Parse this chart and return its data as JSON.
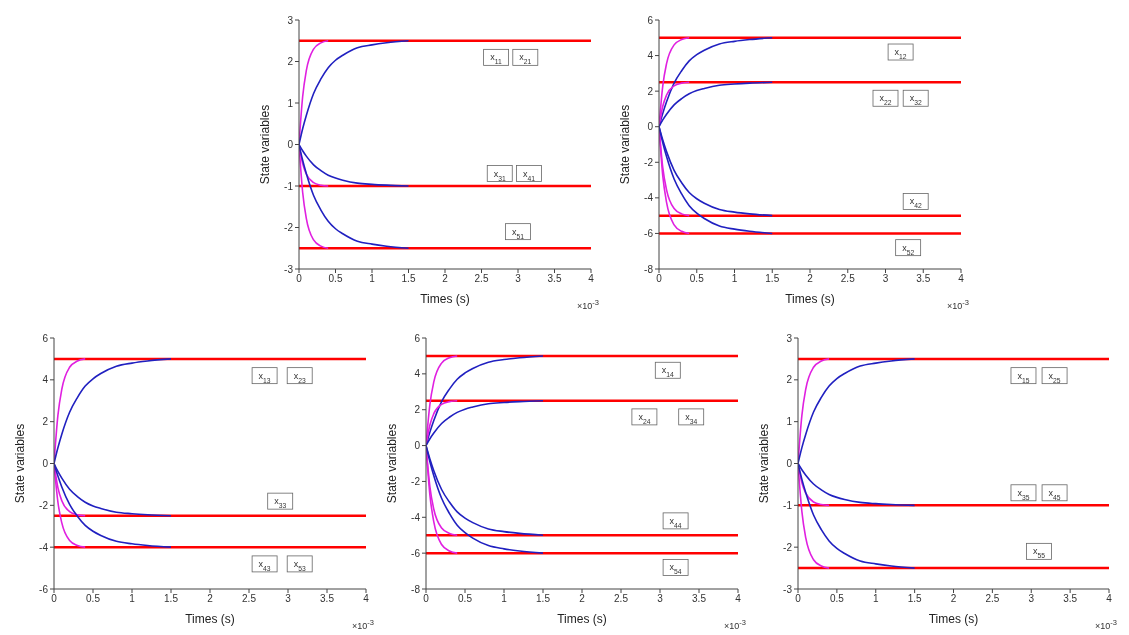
{
  "chart_data": [
    {
      "type": "line",
      "xlabel": "Times (s)",
      "ylabel": "State variables",
      "xlim": [
        0,
        4
      ],
      "xticks": [
        0,
        0.5,
        1,
        1.5,
        2,
        2.5,
        3,
        3.5,
        4
      ],
      "ylim": [
        -3,
        3
      ],
      "yticks": [
        -3,
        -2,
        -1,
        0,
        1,
        2,
        3
      ],
      "grid": false,
      "legend": false,
      "x": [
        0,
        0.05,
        0.1,
        0.2,
        0.3,
        0.4,
        0.5,
        0.6,
        0.8,
        1,
        1.2,
        1.5
      ],
      "series": [
        {
          "color": "#e020e0",
          "values": [
            0,
            1.15,
            1.78,
            2.3,
            2.45,
            2.5,
            null,
            null,
            null,
            null,
            null,
            null
          ]
        },
        {
          "color": "#2020c0",
          "values": [
            0,
            0.38,
            0.7,
            1.23,
            1.58,
            1.85,
            2.03,
            2.15,
            2.33,
            2.4,
            2.45,
            2.5
          ]
        },
        {
          "color": "#e020e0",
          "values": [
            0,
            -0.46,
            -0.71,
            -0.92,
            -0.98,
            -1,
            null,
            null,
            null,
            null,
            null,
            null
          ]
        },
        {
          "color": "#2020c0",
          "values": [
            0,
            -0.15,
            -0.28,
            -0.49,
            -0.63,
            -0.74,
            -0.81,
            -0.86,
            -0.93,
            -0.96,
            -0.98,
            -1
          ]
        },
        {
          "color": "#e020e0",
          "values": [
            0,
            -1.15,
            -1.78,
            -2.3,
            -2.45,
            -2.5,
            null,
            null,
            null,
            null,
            null,
            null
          ]
        },
        {
          "color": "#2020c0",
          "values": [
            0,
            -0.38,
            -0.7,
            -1.23,
            -1.58,
            -1.85,
            -2.03,
            -2.15,
            -2.33,
            -2.4,
            -2.45,
            -2.5
          ]
        }
      ],
      "ref_lines": [
        {
          "axis": "y",
          "value": 2.5,
          "color": "#ff0000"
        },
        {
          "axis": "y",
          "value": -1,
          "color": "#ff0000"
        },
        {
          "axis": "y",
          "value": -2.5,
          "color": "#ff0000"
        }
      ],
      "annotations": [
        "×10$^{-3}$",
        {
          "text": "x$_{11}$",
          "x": 2.7,
          "y": 2.1
        },
        {
          "text": "x$_{21}$",
          "x": 3.1,
          "y": 2.1
        },
        {
          "text": "x$_{31}$",
          "x": 2.75,
          "y": -0.7
        },
        {
          "text": "x$_{41}$",
          "x": 3.15,
          "y": -0.7
        },
        {
          "text": "x$_{51}$",
          "x": 3.0,
          "y": -2.1
        }
      ]
    },
    {
      "type": "line",
      "xlabel": "Times (s)",
      "ylabel": "State variables",
      "xlim": [
        0,
        4
      ],
      "xticks": [
        0,
        0.5,
        1,
        1.5,
        2,
        2.5,
        3,
        3.5,
        4
      ],
      "ylim": [
        -8,
        6
      ],
      "yticks": [
        -8,
        -6,
        -4,
        -2,
        0,
        2,
        4,
        6
      ],
      "grid": false,
      "legend": false,
      "x": [
        0,
        0.05,
        0.1,
        0.2,
        0.3,
        0.4,
        0.5,
        0.6,
        0.8,
        1,
        1.2,
        1.5
      ],
      "series": [
        {
          "color": "#e020e0",
          "values": [
            0,
            2.3,
            3.55,
            4.6,
            4.9,
            5,
            null,
            null,
            null,
            null,
            null,
            null
          ]
        },
        {
          "color": "#2020c0",
          "values": [
            0,
            0.75,
            1.4,
            2.45,
            3.15,
            3.7,
            4.05,
            4.3,
            4.65,
            4.8,
            4.9,
            5
          ]
        },
        {
          "color": "#e020e0",
          "values": [
            0,
            1.15,
            1.78,
            2.3,
            2.45,
            2.5,
            null,
            null,
            null,
            null,
            null,
            null
          ]
        },
        {
          "color": "#2020c0",
          "values": [
            0,
            0.38,
            0.7,
            1.23,
            1.58,
            1.85,
            2.03,
            2.15,
            2.33,
            2.4,
            2.45,
            2.5
          ]
        },
        {
          "color": "#e020e0",
          "values": [
            0,
            -2.3,
            -3.55,
            -4.6,
            -4.9,
            -5,
            null,
            null,
            null,
            null,
            null,
            null
          ]
        },
        {
          "color": "#2020c0",
          "values": [
            0,
            -0.75,
            -1.4,
            -2.45,
            -3.15,
            -3.7,
            -4.05,
            -4.3,
            -4.65,
            -4.8,
            -4.9,
            -5
          ]
        },
        {
          "color": "#e020e0",
          "values": [
            0,
            -2.76,
            -4.26,
            -5.52,
            -5.88,
            -6,
            null,
            null,
            null,
            null,
            null,
            null
          ]
        },
        {
          "color": "#2020c0",
          "values": [
            0,
            -0.9,
            -1.68,
            -2.94,
            -3.78,
            -4.44,
            -4.86,
            -5.16,
            -5.58,
            -5.76,
            -5.88,
            -6
          ]
        }
      ],
      "ref_lines": [
        {
          "axis": "y",
          "value": 5,
          "color": "#ff0000"
        },
        {
          "axis": "y",
          "value": 2.5,
          "color": "#ff0000"
        },
        {
          "axis": "y",
          "value": -5,
          "color": "#ff0000"
        },
        {
          "axis": "y",
          "value": -6,
          "color": "#ff0000"
        }
      ],
      "annotations": [
        "×10$^{-3}$",
        {
          "text": "x$_{12}$",
          "x": 3.2,
          "y": 4.2
        },
        {
          "text": "x$_{22}$",
          "x": 3.0,
          "y": 1.6
        },
        {
          "text": "x$_{32}$",
          "x": 3.4,
          "y": 1.6
        },
        {
          "text": "x$_{42}$",
          "x": 3.4,
          "y": -4.2
        },
        {
          "text": "x$_{52}$",
          "x": 3.3,
          "y": -6.8
        }
      ]
    },
    {
      "type": "line",
      "xlabel": "Times (s)",
      "ylabel": "State variables",
      "xlim": [
        0,
        4
      ],
      "xticks": [
        0,
        0.5,
        1,
        1.5,
        2,
        2.5,
        3,
        3.5,
        4
      ],
      "ylim": [
        -6,
        6
      ],
      "yticks": [
        -6,
        -4,
        -2,
        0,
        2,
        4,
        6
      ],
      "grid": false,
      "legend": false,
      "x": [
        0,
        0.05,
        0.1,
        0.2,
        0.3,
        0.4,
        0.5,
        0.6,
        0.8,
        1,
        1.2,
        1.5
      ],
      "series": [
        {
          "color": "#e020e0",
          "values": [
            0,
            2.3,
            3.55,
            4.6,
            4.9,
            5,
            null,
            null,
            null,
            null,
            null,
            null
          ]
        },
        {
          "color": "#2020c0",
          "values": [
            0,
            0.75,
            1.4,
            2.45,
            3.15,
            3.7,
            4.05,
            4.3,
            4.65,
            4.8,
            4.9,
            5
          ]
        },
        {
          "color": "#e020e0",
          "values": [
            0,
            -1.15,
            -1.78,
            -2.3,
            -2.45,
            -2.5,
            null,
            null,
            null,
            null,
            null,
            null
          ]
        },
        {
          "color": "#2020c0",
          "values": [
            0,
            -0.38,
            -0.7,
            -1.23,
            -1.58,
            -1.85,
            -2.03,
            -2.15,
            -2.33,
            -2.4,
            -2.45,
            -2.5
          ]
        },
        {
          "color": "#e020e0",
          "values": [
            0,
            -1.84,
            -2.84,
            -3.68,
            -3.92,
            -4,
            null,
            null,
            null,
            null,
            null,
            null
          ]
        },
        {
          "color": "#2020c0",
          "values": [
            0,
            -0.6,
            -1.12,
            -1.96,
            -2.52,
            -2.96,
            -3.24,
            -3.44,
            -3.72,
            -3.84,
            -3.92,
            -4
          ]
        }
      ],
      "ref_lines": [
        {
          "axis": "y",
          "value": 5,
          "color": "#ff0000"
        },
        {
          "axis": "y",
          "value": -2.5,
          "color": "#ff0000"
        },
        {
          "axis": "y",
          "value": -4,
          "color": "#ff0000"
        }
      ],
      "annotations": [
        "×10$^{-3}$",
        {
          "text": "x$_{13}$",
          "x": 2.7,
          "y": 4.2
        },
        {
          "text": "x$_{23}$",
          "x": 3.15,
          "y": 4.2
        },
        {
          "text": "x$_{33}$",
          "x": 2.9,
          "y": -1.8
        },
        {
          "text": "x$_{43}$",
          "x": 2.7,
          "y": -4.8
        },
        {
          "text": "x$_{53}$",
          "x": 3.15,
          "y": -4.8
        }
      ]
    },
    {
      "type": "line",
      "xlabel": "Times (s)",
      "ylabel": "State variables",
      "xlim": [
        0,
        4
      ],
      "xticks": [
        0,
        0.5,
        1,
        1.5,
        2,
        2.5,
        3,
        3.5,
        4
      ],
      "ylim": [
        -8,
        6
      ],
      "yticks": [
        -8,
        -6,
        -4,
        -2,
        0,
        2,
        4,
        6
      ],
      "grid": false,
      "legend": false,
      "x": [
        0,
        0.05,
        0.1,
        0.2,
        0.3,
        0.4,
        0.5,
        0.6,
        0.8,
        1,
        1.2,
        1.5
      ],
      "series": [
        {
          "color": "#e020e0",
          "values": [
            0,
            2.3,
            3.55,
            4.6,
            4.9,
            5,
            null,
            null,
            null,
            null,
            null,
            null
          ]
        },
        {
          "color": "#2020c0",
          "values": [
            0,
            0.75,
            1.4,
            2.45,
            3.15,
            3.7,
            4.05,
            4.3,
            4.65,
            4.8,
            4.9,
            5
          ]
        },
        {
          "color": "#e020e0",
          "values": [
            0,
            1.15,
            1.78,
            2.3,
            2.45,
            2.5,
            null,
            null,
            null,
            null,
            null,
            null
          ]
        },
        {
          "color": "#2020c0",
          "values": [
            0,
            0.38,
            0.7,
            1.23,
            1.58,
            1.85,
            2.03,
            2.15,
            2.33,
            2.4,
            2.45,
            2.5
          ]
        },
        {
          "color": "#e020e0",
          "values": [
            0,
            -2.3,
            -3.55,
            -4.6,
            -4.9,
            -5,
            null,
            null,
            null,
            null,
            null,
            null
          ]
        },
        {
          "color": "#2020c0",
          "values": [
            0,
            -0.75,
            -1.4,
            -2.45,
            -3.15,
            -3.7,
            -4.05,
            -4.3,
            -4.65,
            -4.8,
            -4.9,
            -5
          ]
        },
        {
          "color": "#e020e0",
          "values": [
            0,
            -2.76,
            -4.26,
            -5.52,
            -5.88,
            -6,
            null,
            null,
            null,
            null,
            null,
            null
          ]
        },
        {
          "color": "#2020c0",
          "values": [
            0,
            -0.9,
            -1.68,
            -2.94,
            -3.78,
            -4.44,
            -4.86,
            -5.16,
            -5.58,
            -5.76,
            -5.88,
            -6
          ]
        }
      ],
      "ref_lines": [
        {
          "axis": "y",
          "value": 5,
          "color": "#ff0000"
        },
        {
          "axis": "y",
          "value": 2.5,
          "color": "#ff0000"
        },
        {
          "axis": "y",
          "value": -5,
          "color": "#ff0000"
        },
        {
          "axis": "y",
          "value": -6,
          "color": "#ff0000"
        }
      ],
      "annotations": [
        "×10$^{-3}$",
        {
          "text": "x$_{14}$",
          "x": 3.1,
          "y": 4.2
        },
        {
          "text": "x$_{24}$",
          "x": 2.8,
          "y": 1.6
        },
        {
          "text": "x$_{34}$",
          "x": 3.4,
          "y": 1.6
        },
        {
          "text": "x$_{44}$",
          "x": 3.2,
          "y": -4.2
        },
        {
          "text": "x$_{54}$",
          "x": 3.2,
          "y": -6.8
        }
      ]
    },
    {
      "type": "line",
      "xlabel": "Times (s)",
      "ylabel": "State variables",
      "xlim": [
        0,
        4
      ],
      "xticks": [
        0,
        0.5,
        1,
        1.5,
        2,
        2.5,
        3,
        3.5,
        4
      ],
      "ylim": [
        -3,
        3
      ],
      "yticks": [
        -3,
        -2,
        -1,
        0,
        1,
        2,
        3
      ],
      "grid": false,
      "legend": false,
      "x": [
        0,
        0.05,
        0.1,
        0.2,
        0.3,
        0.4,
        0.5,
        0.6,
        0.8,
        1,
        1.2,
        1.5
      ],
      "series": [
        {
          "color": "#e020e0",
          "values": [
            0,
            1.15,
            1.78,
            2.3,
            2.45,
            2.5,
            null,
            null,
            null,
            null,
            null,
            null
          ]
        },
        {
          "color": "#2020c0",
          "values": [
            0,
            0.38,
            0.7,
            1.23,
            1.58,
            1.85,
            2.03,
            2.15,
            2.33,
            2.4,
            2.45,
            2.5
          ]
        },
        {
          "color": "#e020e0",
          "values": [
            0,
            -0.46,
            -0.71,
            -0.92,
            -0.98,
            -1,
            null,
            null,
            null,
            null,
            null,
            null
          ]
        },
        {
          "color": "#2020c0",
          "values": [
            0,
            -0.15,
            -0.28,
            -0.49,
            -0.63,
            -0.74,
            -0.81,
            -0.86,
            -0.93,
            -0.96,
            -0.98,
            -1
          ]
        },
        {
          "color": "#e020e0",
          "values": [
            0,
            -1.15,
            -1.78,
            -2.3,
            -2.45,
            -2.5,
            null,
            null,
            null,
            null,
            null,
            null
          ]
        },
        {
          "color": "#2020c0",
          "values": [
            0,
            -0.38,
            -0.7,
            -1.23,
            -1.58,
            -1.85,
            -2.03,
            -2.15,
            -2.33,
            -2.4,
            -2.45,
            -2.5
          ]
        }
      ],
      "ref_lines": [
        {
          "axis": "y",
          "value": 2.5,
          "color": "#ff0000"
        },
        {
          "axis": "y",
          "value": -1,
          "color": "#ff0000"
        },
        {
          "axis": "y",
          "value": -2.5,
          "color": "#ff0000"
        }
      ],
      "annotations": [
        "×10$^{-3}$",
        {
          "text": "x$_{15}$",
          "x": 2.9,
          "y": 2.1
        },
        {
          "text": "x$_{25}$",
          "x": 3.3,
          "y": 2.1
        },
        {
          "text": "x$_{35}$",
          "x": 2.9,
          "y": -0.7
        },
        {
          "text": "x$_{45}$",
          "x": 3.3,
          "y": -0.7
        },
        {
          "text": "x$_{55}$",
          "x": 3.1,
          "y": -2.1
        }
      ]
    }
  ]
}
